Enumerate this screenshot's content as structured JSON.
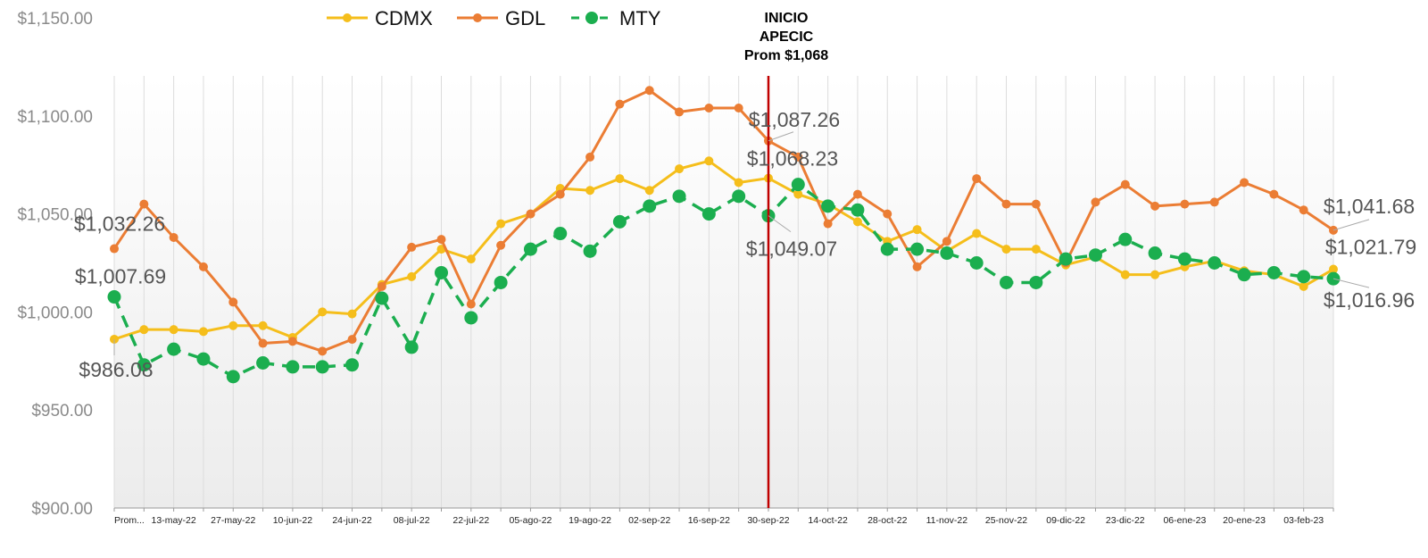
{
  "chart_data": {
    "type": "line",
    "title": "",
    "xlabel": "",
    "ylabel": "",
    "ylim": [
      900,
      1150
    ],
    "y_ticks": [
      900,
      950,
      1000,
      1050,
      1100,
      1150
    ],
    "y_tick_labels": [
      "$900.00",
      "$950.00",
      "$1,000.00",
      "$1,050.00",
      "$1,100.00",
      "$1,150.00"
    ],
    "x_count": 42,
    "x_tick_labels": [
      {
        "index": 0,
        "label": "Prom..."
      },
      {
        "index": 2,
        "label": "13-may-22"
      },
      {
        "index": 4,
        "label": "27-may-22"
      },
      {
        "index": 6,
        "label": "10-jun-22"
      },
      {
        "index": 8,
        "label": "24-jun-22"
      },
      {
        "index": 10,
        "label": "08-jul-22"
      },
      {
        "index": 12,
        "label": "22-jul-22"
      },
      {
        "index": 14,
        "label": "05-ago-22"
      },
      {
        "index": 16,
        "label": "19-ago-22"
      },
      {
        "index": 18,
        "label": "02-sep-22"
      },
      {
        "index": 20,
        "label": "16-sep-22"
      },
      {
        "index": 22,
        "label": "30-sep-22"
      },
      {
        "index": 24,
        "label": "14-oct-22"
      },
      {
        "index": 26,
        "label": "28-oct-22"
      },
      {
        "index": 28,
        "label": "11-nov-22"
      },
      {
        "index": 30,
        "label": "25-nov-22"
      },
      {
        "index": 32,
        "label": "09-dic-22"
      },
      {
        "index": 34,
        "label": "23-dic-22"
      },
      {
        "index": 36,
        "label": "06-ene-23"
      },
      {
        "index": 38,
        "label": "20-ene-23"
      },
      {
        "index": 40,
        "label": "03-feb-23"
      }
    ],
    "legend_position": "top-center",
    "grid": "vertical",
    "series": [
      {
        "name": "CDMX",
        "color": "#F5BE1B",
        "style": "solid",
        "values": [
          986.08,
          991,
          991,
          990,
          993,
          993,
          987,
          1000,
          999,
          1014,
          1018,
          1032,
          1027,
          1045,
          1050,
          1063,
          1062,
          1068,
          1062,
          1073,
          1077,
          1066,
          1068.23,
          1060,
          1055,
          1046,
          1036,
          1042,
          1031,
          1040,
          1032,
          1032,
          1024,
          1028,
          1019,
          1019,
          1023,
          1026,
          1021,
          1019,
          1013,
          1021.79
        ]
      },
      {
        "name": "GDL",
        "color": "#EB7D34",
        "style": "solid",
        "values": [
          1032.26,
          1055,
          1038,
          1023,
          1005,
          984,
          985,
          980,
          986,
          1013,
          1033,
          1037,
          1004,
          1034,
          1050,
          1060,
          1079,
          1106,
          1113,
          1102,
          1104,
          1104,
          1087.26,
          1079,
          1045,
          1060,
          1050,
          1023,
          1036,
          1068,
          1055,
          1055,
          1025,
          1056,
          1065,
          1054,
          1055,
          1056,
          1066,
          1060,
          1052,
          1041.68
        ]
      },
      {
        "name": "MTY",
        "color": "#1BAE4F",
        "style": "dashed",
        "values": [
          1007.69,
          973,
          981,
          976,
          967,
          974,
          972,
          972,
          973,
          1007,
          982,
          1020,
          997,
          1015,
          1032,
          1040,
          1031,
          1046,
          1054,
          1059,
          1050,
          1059,
          1049.07,
          1065,
          1054,
          1052,
          1032,
          1032,
          1030,
          1025,
          1015,
          1015,
          1027,
          1029,
          1037,
          1030,
          1027,
          1025,
          1019,
          1020,
          1018,
          1016.96
        ]
      }
    ],
    "vertical_marker": {
      "index": 22,
      "color": "#C00000",
      "label_lines": [
        "INICIO",
        "APECIC",
        "Prom $1,068"
      ]
    },
    "callouts": [
      {
        "series": "GDL",
        "index": 0,
        "text": "$1,032.26"
      },
      {
        "series": "MTY",
        "index": 0,
        "text": "$1,007.69"
      },
      {
        "series": "CDMX",
        "index": 0,
        "text": "$986.08"
      },
      {
        "series": "GDL",
        "index": 22,
        "text": "$1,087.26"
      },
      {
        "series": "CDMX",
        "index": 22,
        "text": "$1,068.23"
      },
      {
        "series": "MTY",
        "index": 22,
        "text": "$1,049.07"
      },
      {
        "series": "GDL",
        "index": 41,
        "text": "$1,041.68"
      },
      {
        "series": "CDMX",
        "index": 41,
        "text": "$1,021.79"
      },
      {
        "series": "MTY",
        "index": 41,
        "text": "$1,016.96"
      }
    ]
  }
}
